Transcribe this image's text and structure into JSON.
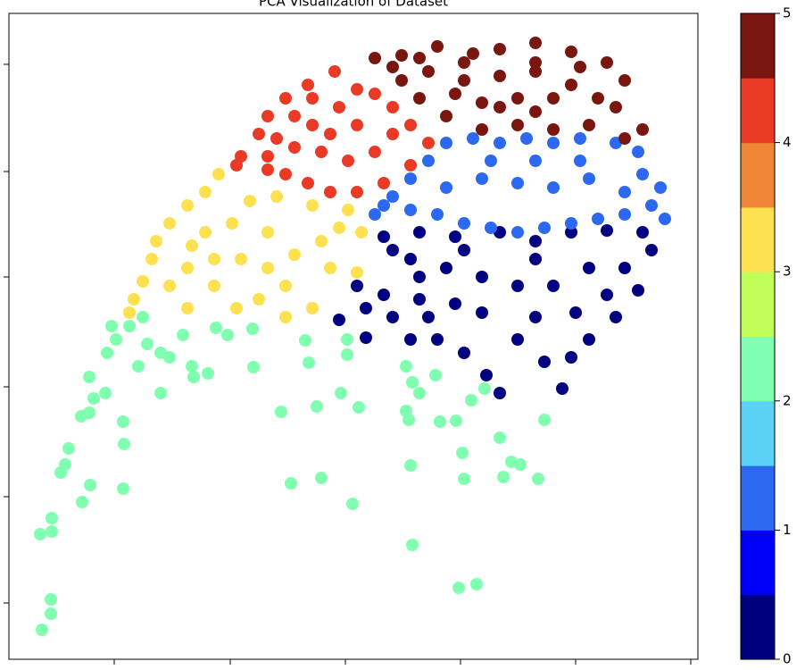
{
  "chart_data": {
    "type": "scatter",
    "title": "PCA Visualization of Dataset",
    "xlim": [
      0,
      772
    ],
    "ylim": [
      0,
      723
    ],
    "xticks": [
      118,
      248,
      377,
      506,
      635,
      764
    ],
    "yticks": [
      63,
      182,
      305,
      428,
      546,
      666
    ],
    "series": [
      {
        "color": "#80ffb0",
        "x": [
          37,
          47,
          47,
          35,
          48,
          48,
          82,
          91,
          128,
          58,
          67,
          63,
          81,
          90,
          95,
          90,
          108,
          128,
          129,
          110,
          120,
          115,
          135,
          150,
          155,
          170,
          180,
          195,
          205,
          207,
          223,
          170,
          145,
          232,
          245,
          273,
          274,
          305,
          316,
          336,
          332,
          345,
          350,
          372,
          379,
          379,
          392,
          385,
          445,
          452,
          460,
          445,
          448,
          450,
          452,
          478,
          483,
          501,
          508,
          510,
          504,
          524,
          518,
          533,
          550,
          563,
          573,
          554,
          593,
          600
        ],
        "values": [
          33,
          51,
          67,
          140,
          143,
          158,
          176,
          195,
          191,
          209,
          236,
          218,
          272,
          276,
          292,
          316,
          298,
          266,
          241,
          343,
          358,
          373,
          373,
          383,
          353,
          343,
          338,
          363,
          328,
          316,
          320,
          298,
          328,
          371,
          363,
          370,
          327,
          277,
          197,
          332,
          357,
          283,
          203,
          298,
          358,
          341,
          282,
          174,
          328,
          310,
          298,
          278,
          268,
          217,
          128,
          318,
          266,
          267,
          231,
          202,
          80,
          84,
          290,
          303,
          248,
          221,
          218,
          204,
          202,
          268
        ]
      },
      {
        "color": "#000080",
        "x": [
          420,
          460,
          500,
          550,
          590,
          630,
          670,
          710,
          720,
          705,
          680,
          650,
          620,
          600,
          570,
          550,
          535,
          510,
          480,
          450,
          430,
          400,
          370,
          400,
          420,
          390,
          460,
          490,
          530,
          570,
          610,
          650,
          690,
          530,
          590,
          635,
          450,
          510,
          590,
          460,
          500,
          470,
          430,
          670,
          630
        ],
        "values": [
          473,
          478,
          473,
          478,
          468,
          478,
          480,
          478,
          458,
          413,
          383,
          358,
          303,
          333,
          358,
          298,
          318,
          343,
          358,
          358,
          383,
          393,
          380,
          360,
          408,
          418,
          428,
          438,
          428,
          418,
          418,
          438,
          438,
          388,
          383,
          388,
          448,
          458,
          448,
          403,
          398,
          383,
          458,
          408,
          338
        ]
      },
      {
        "color": "#2c69f0",
        "x": [
          410,
          430,
          450,
          470,
          490,
          520,
          550,
          580,
          610,
          640,
          680,
          705,
          710,
          730,
          720,
          690,
          660,
          630,
          600,
          570,
          540,
          510,
          480,
          450,
          530,
          570,
          610,
          650,
          690,
          490,
          590,
          640,
          540,
          735,
          420
        ],
        "values": [
          498,
          518,
          538,
          558,
          578,
          583,
          578,
          583,
          578,
          583,
          578,
          568,
          543,
          528,
          508,
          498,
          493,
          488,
          483,
          478,
          483,
          488,
          498,
          503,
          538,
          533,
          528,
          538,
          523,
          528,
          558,
          558,
          558,
          493,
          508
        ]
      },
      {
        "color": "#fde150",
        "x": [
          235,
          220,
          200,
          180,
          165,
          160,
          150,
          140,
          135,
          200,
          230,
          255,
          280,
          310,
          340,
          310,
          290,
          320,
          350,
          370,
          395,
          390,
          260,
          230,
          200,
          180,
          270,
          300,
          340,
          380,
          250,
          220,
          290,
          360,
          205
        ],
        "values": [
          543,
          523,
          508,
          488,
          468,
          448,
          423,
          403,
          388,
          393,
          418,
          393,
          403,
          383,
          393,
          418,
          438,
          453,
          468,
          483,
          478,
          433,
          448,
          448,
          438,
          418,
          513,
          518,
          508,
          503,
          488,
          478,
          478,
          438,
          463
        ]
      },
      {
        "color": "#e83a25",
        "x": [
          365,
          335,
          310,
          290,
          280,
          260,
          255,
          290,
          320,
          340,
          370,
          390,
          410,
          430,
          450,
          470,
          450,
          420,
          390,
          360,
          335,
          310,
          290,
          320,
          350,
          380,
          410,
          430,
          390,
          360,
          300,
          340
        ],
        "values": [
          658,
          643,
          628,
          608,
          588,
          563,
          553,
          563,
          573,
          598,
          618,
          638,
          633,
          618,
          598,
          578,
          553,
          533,
          523,
          523,
          533,
          543,
          548,
          608,
          568,
          558,
          568,
          588,
          598,
          588,
          583,
          628
        ]
      },
      {
        "color": "#7a1610",
        "x": [
          410,
          440,
          480,
          520,
          550,
          590,
          630,
          670,
          690,
          680,
          650,
          610,
          570,
          530,
          490,
          460,
          440,
          470,
          510,
          550,
          590,
          630,
          660,
          610,
          570,
          530,
          500,
          430,
          710,
          690,
          590,
          510,
          460,
          640,
          550,
          590
        ],
        "values": [
          673,
          676,
          686,
          678,
          683,
          690,
          680,
          668,
          648,
          618,
          598,
          593,
          598,
          593,
          608,
          628,
          648,
          658,
          648,
          653,
          658,
          643,
          628,
          628,
          628,
          623,
          633,
          663,
          593,
          583,
          668,
          668,
          673,
          663,
          618,
          613
        ]
      }
    ],
    "colorbar": {
      "lim": [
        0,
        5
      ],
      "ticks": [
        0,
        1,
        2,
        3,
        4,
        5
      ],
      "colors": [
        "#00007f",
        "#0000f5",
        "#2c69f0",
        "#5ad2f5",
        "#80ffb0",
        "#c0ff5a",
        "#fde150",
        "#f08536",
        "#e83a25",
        "#7a1610"
      ]
    }
  }
}
